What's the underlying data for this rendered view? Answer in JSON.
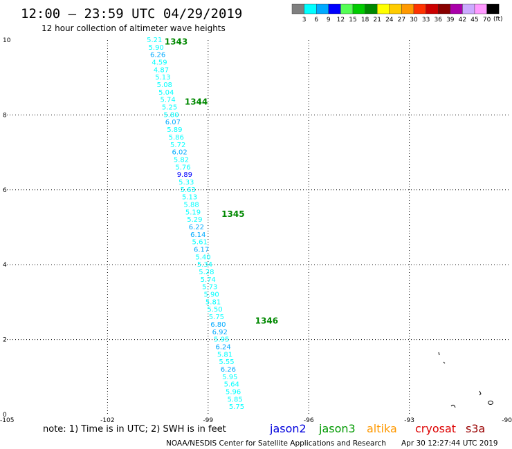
{
  "header": {
    "title": "12:00 – 23:59 UTC 04/29/2019",
    "subtitle": "12 hour collection of altimeter wave heights"
  },
  "legend": {
    "unit": "(ft)",
    "bins": [
      {
        "label": "3",
        "color": "#7f7f7f"
      },
      {
        "label": "6",
        "color": "#00ffff"
      },
      {
        "label": "9",
        "color": "#00aaff"
      },
      {
        "label": "12",
        "color": "#0000ff"
      },
      {
        "label": "15",
        "color": "#55ff55"
      },
      {
        "label": "18",
        "color": "#00cc00"
      },
      {
        "label": "21",
        "color": "#008800"
      },
      {
        "label": "24",
        "color": "#ffff00"
      },
      {
        "label": "27",
        "color": "#ffcc00"
      },
      {
        "label": "30",
        "color": "#ff9900"
      },
      {
        "label": "33",
        "color": "#ff3300"
      },
      {
        "label": "36",
        "color": "#cc0000"
      },
      {
        "label": "39",
        "color": "#880000"
      },
      {
        "label": "42",
        "color": "#aa00aa"
      },
      {
        "label": "45",
        "color": "#ccaaff"
      },
      {
        "label": "70",
        "color": "#ff99ff"
      },
      {
        "label": "",
        "color": "#000000"
      }
    ]
  },
  "footer": {
    "note": "note:  1) Time is in UTC;  2) SWH is in feet",
    "satellites": [
      {
        "name": "jason2",
        "color": "#0000dd"
      },
      {
        "name": "jason3",
        "color": "#009900"
      },
      {
        "name": "altika",
        "color": "#ff9900"
      },
      {
        "name": "cryosat",
        "color": "#dd0000"
      },
      {
        "name": "s3a",
        "color": "#990000"
      }
    ],
    "credit": "NOAA/NESDIS Center for Satellite Applications and Research",
    "timestamp": "Apr 30 12:27:44 UTC 2019"
  },
  "chart_data": {
    "type": "scatter",
    "title": "12:00 – 23:59 UTC 04/29/2019",
    "subtitle": "12 hour collection of altimeter wave heights",
    "xlim": [
      -105,
      -90
    ],
    "ylim": [
      0,
      10
    ],
    "x_ticks": [
      {
        "value": -105,
        "label": "-105"
      },
      {
        "value": -102,
        "label": "-102"
      },
      {
        "value": -99,
        "label": "-99"
      },
      {
        "value": -96,
        "label": "-96"
      },
      {
        "value": -93,
        "label": "-93"
      },
      {
        "value": -90,
        "label": "-90"
      }
    ],
    "y_ticks": [
      {
        "value": 0,
        "label": "0"
      },
      {
        "value": 2,
        "label": "2"
      },
      {
        "value": 4,
        "label": "4"
      },
      {
        "value": 6,
        "label": "6"
      },
      {
        "value": 8,
        "label": "8"
      },
      {
        "value": 10,
        "label": "10"
      }
    ],
    "grid": true,
    "time_labels": [
      {
        "text": "1343",
        "x": -100.3,
        "y": 9.95,
        "color": "#008800"
      },
      {
        "text": "1344",
        "x": -99.7,
        "y": 8.35,
        "color": "#008800"
      },
      {
        "text": "1345",
        "x": -98.6,
        "y": 5.35,
        "color": "#008800"
      },
      {
        "text": "1346",
        "x": -97.6,
        "y": 2.5,
        "color": "#008800"
      }
    ],
    "series": [
      {
        "name": "jason3",
        "points": [
          {
            "x": -100.6,
            "y": 10.0,
            "v": "5.21",
            "color": "#00ffff"
          },
          {
            "x": -100.55,
            "y": 9.8,
            "v": "5.90",
            "color": "#00ffff"
          },
          {
            "x": -100.5,
            "y": 9.6,
            "v": "6.26",
            "color": "#00aaff"
          },
          {
            "x": -100.45,
            "y": 9.4,
            "v": "4.59",
            "color": "#00ffff"
          },
          {
            "x": -100.4,
            "y": 9.2,
            "v": "4.87",
            "color": "#00ffff"
          },
          {
            "x": -100.35,
            "y": 9.0,
            "v": "5.13",
            "color": "#00ffff"
          },
          {
            "x": -100.3,
            "y": 8.8,
            "v": "5.08",
            "color": "#00ffff"
          },
          {
            "x": -100.25,
            "y": 8.6,
            "v": "5.04",
            "color": "#00ffff"
          },
          {
            "x": -100.2,
            "y": 8.4,
            "v": "5.74",
            "color": "#00ffff"
          },
          {
            "x": -100.15,
            "y": 8.2,
            "v": "5.25",
            "color": "#00ffff"
          },
          {
            "x": -100.1,
            "y": 8.0,
            "v": "5.80",
            "color": "#00ffff"
          },
          {
            "x": -100.05,
            "y": 7.8,
            "v": "6.07",
            "color": "#00aaff"
          },
          {
            "x": -100.0,
            "y": 7.6,
            "v": "5.89",
            "color": "#00ffff"
          },
          {
            "x": -99.95,
            "y": 7.4,
            "v": "5.86",
            "color": "#00ffff"
          },
          {
            "x": -99.9,
            "y": 7.2,
            "v": "5.72",
            "color": "#00ffff"
          },
          {
            "x": -99.85,
            "y": 7.0,
            "v": "6.02",
            "color": "#00aaff"
          },
          {
            "x": -99.8,
            "y": 6.8,
            "v": "5.82",
            "color": "#00ffff"
          },
          {
            "x": -99.75,
            "y": 6.6,
            "v": "5.76",
            "color": "#00ffff"
          },
          {
            "x": -99.7,
            "y": 6.4,
            "v": "9.89",
            "color": "#0000ff"
          },
          {
            "x": -99.65,
            "y": 6.2,
            "v": "5.33",
            "color": "#00ffff"
          },
          {
            "x": -99.6,
            "y": 6.0,
            "v": "5.63",
            "color": "#00ffff"
          },
          {
            "x": -99.55,
            "y": 5.8,
            "v": "5.13",
            "color": "#00ffff"
          },
          {
            "x": -99.5,
            "y": 5.6,
            "v": "5.88",
            "color": "#00ffff"
          },
          {
            "x": -99.45,
            "y": 5.4,
            "v": "5.19",
            "color": "#00ffff"
          },
          {
            "x": -99.4,
            "y": 5.2,
            "v": "5.29",
            "color": "#00ffff"
          },
          {
            "x": -99.35,
            "y": 5.0,
            "v": "6.22",
            "color": "#00aaff"
          },
          {
            "x": -99.3,
            "y": 4.8,
            "v": "6.14",
            "color": "#00aaff"
          },
          {
            "x": -99.25,
            "y": 4.6,
            "v": "5.61",
            "color": "#00ffff"
          },
          {
            "x": -99.2,
            "y": 4.4,
            "v": "6.17",
            "color": "#00aaff"
          },
          {
            "x": -99.15,
            "y": 4.2,
            "v": "5.40",
            "color": "#00ffff"
          },
          {
            "x": -99.1,
            "y": 4.0,
            "v": "5.34",
            "color": "#00ffff"
          },
          {
            "x": -99.05,
            "y": 3.8,
            "v": "5.28",
            "color": "#00ffff"
          },
          {
            "x": -99.0,
            "y": 3.6,
            "v": "5.74",
            "color": "#00ffff"
          },
          {
            "x": -98.95,
            "y": 3.4,
            "v": "5.73",
            "color": "#00ffff"
          },
          {
            "x": -98.9,
            "y": 3.2,
            "v": "5.90",
            "color": "#00ffff"
          },
          {
            "x": -98.85,
            "y": 3.0,
            "v": "5.81",
            "color": "#00ffff"
          },
          {
            "x": -98.8,
            "y": 2.8,
            "v": "5.50",
            "color": "#00ffff"
          },
          {
            "x": -98.75,
            "y": 2.6,
            "v": "5.75",
            "color": "#00ffff"
          },
          {
            "x": -98.7,
            "y": 2.4,
            "v": "6.80",
            "color": "#00aaff"
          },
          {
            "x": -98.65,
            "y": 2.2,
            "v": "6.92",
            "color": "#00aaff"
          },
          {
            "x": -98.6,
            "y": 2.0,
            "v": "5.95",
            "color": "#00ffff"
          },
          {
            "x": -98.55,
            "y": 1.8,
            "v": "6.24",
            "color": "#00aaff"
          },
          {
            "x": -98.5,
            "y": 1.6,
            "v": "5.81",
            "color": "#00ffff"
          },
          {
            "x": -98.45,
            "y": 1.4,
            "v": "5.55",
            "color": "#00ffff"
          },
          {
            "x": -98.4,
            "y": 1.2,
            "v": "6.26",
            "color": "#00aaff"
          },
          {
            "x": -98.35,
            "y": 1.0,
            "v": "5.95",
            "color": "#00ffff"
          },
          {
            "x": -98.3,
            "y": 0.8,
            "v": "5.64",
            "color": "#00ffff"
          },
          {
            "x": -98.25,
            "y": 0.6,
            "v": "5.96",
            "color": "#00ffff"
          },
          {
            "x": -98.2,
            "y": 0.4,
            "v": "5.85",
            "color": "#00ffff"
          },
          {
            "x": -98.15,
            "y": 0.2,
            "v": "5.75",
            "color": "#00ffff"
          }
        ]
      }
    ]
  }
}
